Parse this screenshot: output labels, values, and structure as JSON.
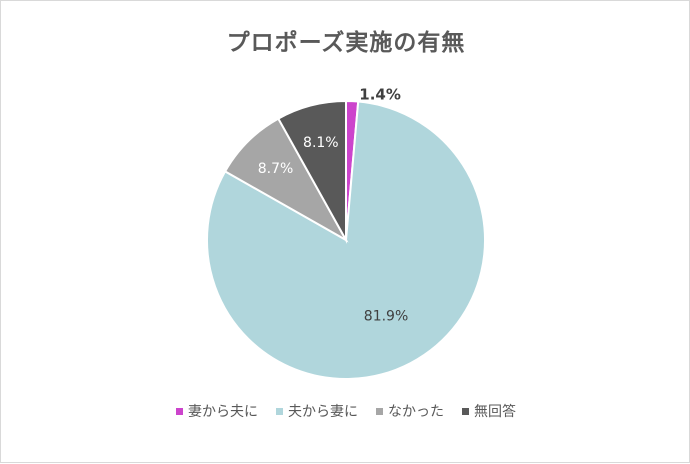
{
  "chart_data": {
    "type": "pie",
    "title": "プロポーズ実施の有無",
    "categories": [
      "妻から夫に",
      "夫から妻に",
      "なかった",
      "無回答"
    ],
    "values": [
      1.4,
      81.9,
      8.7,
      8.1
    ],
    "labels": [
      "1.4%",
      "81.9%",
      "8.7%",
      "8.1%"
    ],
    "colors": [
      "#cc44cc",
      "#b0d6dc",
      "#a6a6a6",
      "#595959"
    ],
    "label_colors": [
      "#404040",
      "#404040",
      "#ffffff",
      "#ffffff"
    ],
    "legend_position": "bottom"
  }
}
